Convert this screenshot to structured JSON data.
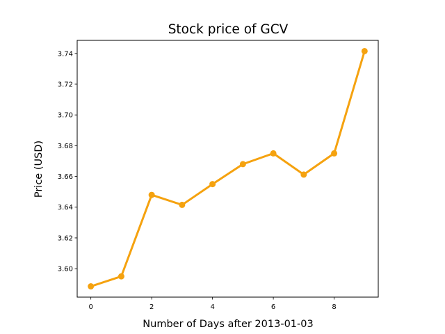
{
  "chart_data": {
    "type": "line",
    "title": "Stock price of GCV",
    "xlabel": "Number of Days after 2013-01-03",
    "ylabel": "Price (USD)",
    "x": [
      0,
      1,
      2,
      3,
      4,
      5,
      6,
      7,
      8,
      9
    ],
    "series": [
      {
        "values": [
          3.5885,
          3.595,
          3.648,
          3.6415,
          3.655,
          3.668,
          3.675,
          3.6612,
          3.675,
          3.7415
        ],
        "color": "#F5A20F",
        "marker": "circle"
      }
    ],
    "xticks": [
      "0",
      "2",
      "4",
      "6",
      "8"
    ],
    "yticks": [
      "3.60",
      "3.62",
      "3.64",
      "3.66",
      "3.68",
      "3.70",
      "3.72",
      "3.74"
    ],
    "xlim": [
      -0.45,
      9.45
    ],
    "ylim": [
      3.5815,
      3.7485
    ],
    "grid": false,
    "legend": false
  }
}
